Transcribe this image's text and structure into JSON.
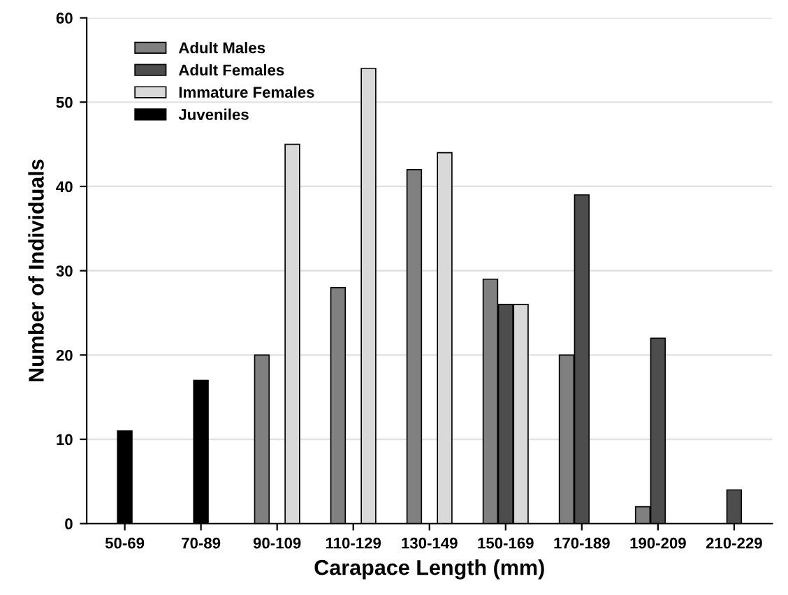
{
  "chart_data": {
    "type": "bar",
    "xlabel": "Carapace Length (mm)",
    "ylabel": "Number of Individuals",
    "categories": [
      "50-69",
      "70-89",
      "90-109",
      "110-129",
      "130-149",
      "150-169",
      "170-189",
      "190-209",
      "210-229"
    ],
    "series": [
      {
        "name": "Adult Males",
        "color": "#808080",
        "values": [
          null,
          null,
          20,
          28,
          42,
          29,
          20,
          2,
          null
        ]
      },
      {
        "name": "Adult Females",
        "color": "#4d4d4d",
        "values": [
          null,
          null,
          null,
          null,
          null,
          26,
          39,
          22,
          4
        ]
      },
      {
        "name": "Immature Females",
        "color": "#d9d9d9",
        "values": [
          null,
          null,
          45,
          54,
          44,
          26,
          null,
          null,
          null
        ]
      },
      {
        "name": "Juveniles",
        "color": "#000000",
        "values": [
          11,
          17,
          null,
          null,
          null,
          null,
          null,
          null,
          null
        ]
      }
    ],
    "ylim": [
      0,
      60
    ],
    "yticks": [
      0,
      10,
      20,
      30,
      40,
      50,
      60
    ],
    "legend": "top left",
    "grid": "y"
  }
}
